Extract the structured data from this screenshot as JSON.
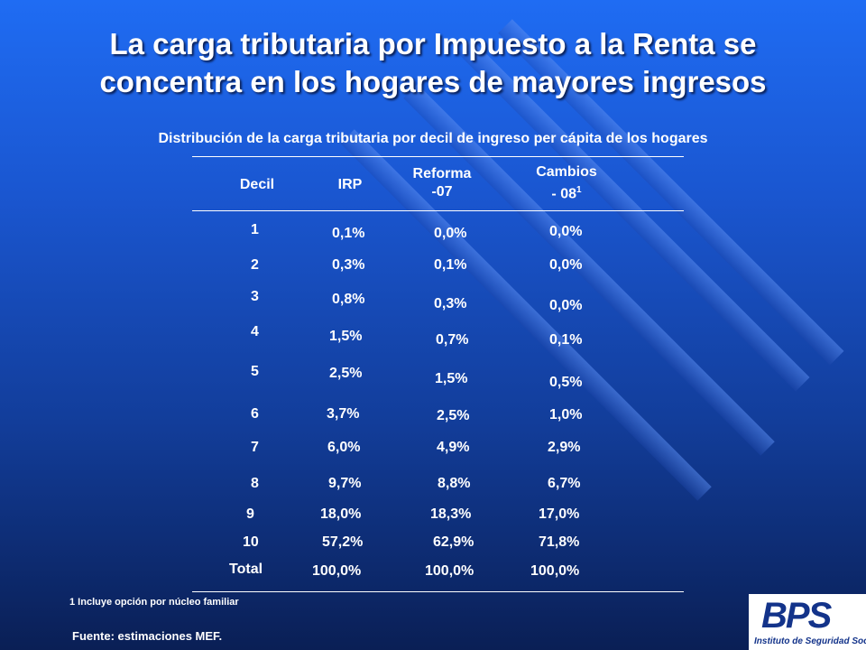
{
  "title": {
    "line1": "La carga tributaria por Impuesto a la Renta se",
    "line2": "concentra en los hogares de mayores ingresos"
  },
  "subtitle": "Distribución de la carga tributaria por decil de ingreso per cápita de los hogares",
  "table": {
    "headers": {
      "decil": "Decil",
      "irp": "IRP",
      "reforma_1": "Reforma",
      "reforma_2": "-07",
      "cambios_1": "Cambios",
      "cambios_2": "- 08",
      "cambios_sup": "1"
    },
    "rows": [
      {
        "decil": "1",
        "irp": "0,1%",
        "reforma": "0,0%",
        "cambios": "0,0%"
      },
      {
        "decil": "2",
        "irp": "0,3%",
        "reforma": "0,1%",
        "cambios": "0,0%"
      },
      {
        "decil": "3",
        "irp": "0,8%",
        "reforma": "0,3%",
        "cambios": "0,0%"
      },
      {
        "decil": "4",
        "irp": "1,5%",
        "reforma": "0,7%",
        "cambios": "0,1%"
      },
      {
        "decil": "5",
        "irp": "2,5%",
        "reforma": "1,5%",
        "cambios": "0,5%"
      },
      {
        "decil": "6",
        "irp": "3,7%",
        "reforma": "2,5%",
        "cambios": "1,0%"
      },
      {
        "decil": "7",
        "irp": "6,0%",
        "reforma": "4,9%",
        "cambios": "2,9%"
      },
      {
        "decil": "8",
        "irp": "9,7%",
        "reforma": "8,8%",
        "cambios": "6,7%"
      },
      {
        "decil": "9",
        "irp": "18,0%",
        "reforma": "18,3%",
        "cambios": "17,0%"
      },
      {
        "decil": "10",
        "irp": "57,2%",
        "reforma": "62,9%",
        "cambios": "71,8%"
      }
    ],
    "total": {
      "decil": "Total",
      "irp": "100,0%",
      "reforma": "100,0%",
      "cambios": "100,0%"
    }
  },
  "footnote": "1 Incluye opción por núcleo familiar",
  "source": "Fuente: estimaciones MEF.",
  "logo": {
    "text": "BPS",
    "subtitle": "Instituto de Seguridad Social"
  },
  "colors": {
    "background_top": "#1f6cf3",
    "background_bottom": "#0a1f55",
    "text": "#ffffff",
    "logo_blue": "#13338a"
  }
}
